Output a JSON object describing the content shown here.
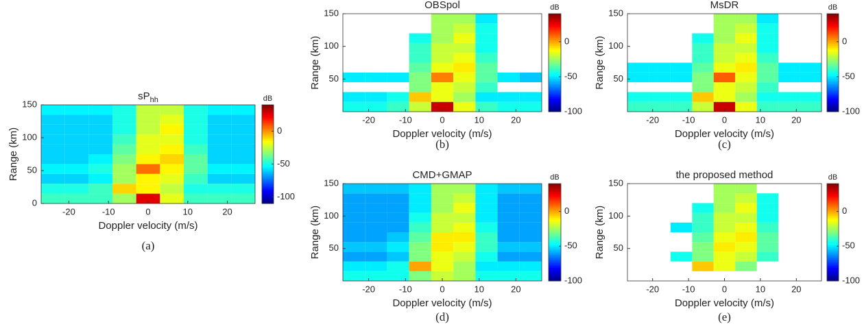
{
  "chart_data": [
    {
      "type": "heatmap",
      "title": "sP",
      "title_sub": "hh",
      "caption": "(a)",
      "xlabel": "Doppler velocity (m/s)",
      "ylabel": "Range (km)",
      "colorbar_label": "dB",
      "x": [
        -24,
        -18,
        -12,
        -6,
        0,
        6,
        12,
        18,
        24
      ],
      "y": [
        7.5,
        22.5,
        37.5,
        52.5,
        67.5,
        82.5,
        97.5,
        112.5,
        127.5,
        142.5
      ],
      "xlim": [
        -27,
        27
      ],
      "ylim": [
        0,
        150
      ],
      "xticks": [
        -20,
        -10,
        0,
        10,
        20
      ],
      "yticks": [
        0,
        50,
        100,
        150
      ],
      "clim": [
        -110,
        40
      ],
      "cticks": [
        0,
        -50,
        -100
      ],
      "z": [
        [
          -45,
          -45,
          -45,
          -30,
          25,
          -20,
          -45,
          -45,
          -45
        ],
        [
          -50,
          -50,
          -45,
          -10,
          -15,
          -25,
          -50,
          -50,
          -50
        ],
        [
          -60,
          -60,
          -55,
          -30,
          -15,
          -20,
          -45,
          -60,
          -60
        ],
        [
          -55,
          -55,
          -50,
          -30,
          5,
          -15,
          -40,
          -55,
          -55
        ],
        [
          -60,
          -60,
          -55,
          -35,
          -15,
          -10,
          -40,
          -60,
          -60
        ],
        [
          -60,
          -60,
          -60,
          -40,
          -20,
          -15,
          -45,
          -60,
          -60
        ],
        [
          -60,
          -60,
          -60,
          -45,
          -20,
          -20,
          -50,
          -60,
          -60
        ],
        [
          -60,
          -60,
          -60,
          -50,
          -25,
          -15,
          -50,
          -60,
          -60
        ],
        [
          -60,
          -60,
          -60,
          -50,
          -25,
          -20,
          -50,
          -60,
          -60
        ],
        [
          -55,
          -55,
          -55,
          -50,
          -25,
          -25,
          -50,
          -55,
          -55
        ]
      ]
    },
    {
      "type": "heatmap",
      "title": "OBSpol",
      "caption": "(b)",
      "xlabel": "Doppler velocity (m/s)",
      "ylabel": "Range (km)",
      "colorbar_label": "dB",
      "x": [
        -24,
        -18,
        -12,
        -6,
        0,
        6,
        12,
        18,
        24
      ],
      "y": [
        7.5,
        22.5,
        37.5,
        52.5,
        67.5,
        82.5,
        97.5,
        112.5,
        127.5,
        142.5
      ],
      "xlim": [
        -27,
        27
      ],
      "ylim": [
        0,
        150
      ],
      "xticks": [
        -20,
        -10,
        0,
        10,
        20
      ],
      "yticks": [
        50,
        100,
        150
      ],
      "clim": [
        -100,
        40
      ],
      "cticks": [
        0,
        -50,
        -100
      ],
      "z": [
        [
          -45,
          -45,
          -40,
          -20,
          30,
          -15,
          -40,
          -45,
          -45
        ],
        [
          -50,
          -50,
          -45,
          -5,
          -15,
          -25,
          -50,
          -50,
          -50
        ],
        [
          null,
          null,
          null,
          -30,
          -15,
          -20,
          -40,
          null,
          null
        ],
        [
          -50,
          -50,
          -50,
          -30,
          5,
          -15,
          -35,
          -50,
          -55
        ],
        [
          null,
          null,
          null,
          -35,
          -15,
          -10,
          -35,
          null,
          null
        ],
        [
          null,
          null,
          null,
          -40,
          -20,
          -15,
          -40,
          null,
          null
        ],
        [
          null,
          null,
          null,
          -40,
          -20,
          -20,
          -45,
          null,
          null
        ],
        [
          null,
          null,
          null,
          -45,
          -25,
          -15,
          -45,
          null,
          null
        ],
        [
          null,
          null,
          null,
          null,
          -25,
          -20,
          -45,
          null,
          null
        ],
        [
          null,
          null,
          null,
          null,
          -25,
          -25,
          -50,
          null,
          null
        ]
      ]
    },
    {
      "type": "heatmap",
      "title": "MsDR",
      "caption": "(c)",
      "xlabel": "Doppler velocity (m/s)",
      "ylabel": "Range (km)",
      "colorbar_label": "dB",
      "x": [
        -24,
        -18,
        -12,
        -6,
        0,
        6,
        12,
        18,
        24
      ],
      "y": [
        7.5,
        22.5,
        37.5,
        52.5,
        67.5,
        82.5,
        97.5,
        112.5,
        127.5,
        142.5
      ],
      "xlim": [
        -27,
        27
      ],
      "ylim": [
        0,
        150
      ],
      "xticks": [
        -20,
        -10,
        0,
        10,
        20
      ],
      "yticks": [
        50,
        100,
        150
      ],
      "clim": [
        -100,
        40
      ],
      "cticks": [
        0,
        -50,
        -100
      ],
      "z": [
        [
          -40,
          -40,
          -40,
          -20,
          30,
          -15,
          -40,
          -40,
          -40
        ],
        [
          -45,
          -45,
          -45,
          -5,
          -15,
          -25,
          -45,
          -45,
          -45
        ],
        [
          null,
          null,
          null,
          -30,
          -15,
          -20,
          -40,
          null,
          null
        ],
        [
          -50,
          -50,
          -50,
          -30,
          10,
          -15,
          -35,
          -50,
          -50
        ],
        [
          -50,
          -50,
          -50,
          -35,
          -15,
          -10,
          -35,
          -50,
          -50
        ],
        [
          null,
          null,
          null,
          -40,
          -20,
          -15,
          -40,
          null,
          null
        ],
        [
          null,
          null,
          null,
          -40,
          -20,
          -20,
          -45,
          null,
          null
        ],
        [
          null,
          null,
          null,
          -45,
          -25,
          -15,
          -45,
          null,
          null
        ],
        [
          null,
          null,
          null,
          null,
          -25,
          -20,
          -45,
          null,
          null
        ],
        [
          null,
          null,
          null,
          null,
          -25,
          -25,
          -50,
          null,
          null
        ]
      ]
    },
    {
      "type": "heatmap",
      "title": "CMD+GMAP",
      "caption": "(d)",
      "xlabel": "Doppler velocity (m/s)",
      "ylabel": "Range (km)",
      "colorbar_label": "dB",
      "x": [
        -24,
        -18,
        -12,
        -6,
        0,
        6,
        12,
        18,
        24
      ],
      "y": [
        7.5,
        22.5,
        37.5,
        52.5,
        67.5,
        82.5,
        97.5,
        112.5,
        127.5,
        142.5
      ],
      "xlim": [
        -27,
        27
      ],
      "ylim": [
        0,
        150
      ],
      "xticks": [
        -20,
        -10,
        0,
        10,
        20
      ],
      "yticks": [
        50,
        100,
        150
      ],
      "clim": [
        -100,
        40
      ],
      "cticks": [
        0,
        -50,
        -100
      ],
      "z": [
        [
          -45,
          -45,
          -45,
          -30,
          -20,
          -25,
          -45,
          -45,
          -45
        ],
        [
          -50,
          -50,
          -45,
          0,
          -15,
          -25,
          -50,
          -50,
          -50
        ],
        [
          -60,
          -60,
          -55,
          -30,
          -15,
          -20,
          -45,
          -60,
          -60
        ],
        [
          -55,
          -55,
          -50,
          -30,
          -10,
          -15,
          -40,
          -55,
          -55
        ],
        [
          -60,
          -60,
          -55,
          -35,
          -10,
          -10,
          -40,
          -60,
          -60
        ],
        [
          -60,
          -60,
          -60,
          -40,
          -20,
          -15,
          -45,
          -60,
          -60
        ],
        [
          -60,
          -60,
          -60,
          -45,
          -20,
          -20,
          -50,
          -60,
          -60
        ],
        [
          -60,
          -60,
          -60,
          -50,
          -25,
          -15,
          -50,
          -60,
          -60
        ],
        [
          -60,
          -60,
          -60,
          -50,
          -25,
          -20,
          -50,
          -60,
          -60
        ],
        [
          -55,
          -55,
          -55,
          -50,
          -25,
          -25,
          -50,
          -55,
          -55
        ]
      ]
    },
    {
      "type": "heatmap",
      "title": "the proposed method",
      "caption": "(e)",
      "xlabel": "Doppler velocity (m/s)",
      "ylabel": "Range (km)",
      "colorbar_label": "dB",
      "x": [
        -24,
        -18,
        -12,
        -6,
        0,
        6,
        12,
        18,
        24
      ],
      "y": [
        7.5,
        22.5,
        37.5,
        52.5,
        67.5,
        82.5,
        97.5,
        112.5,
        127.5,
        142.5
      ],
      "xlim": [
        -27,
        27
      ],
      "ylim": [
        0,
        150
      ],
      "xticks": [
        -20,
        -10,
        0,
        10,
        20
      ],
      "yticks": [
        50,
        100,
        150
      ],
      "clim": [
        -100,
        40
      ],
      "cticks": [
        0,
        -50,
        -100
      ],
      "z": [
        [
          null,
          null,
          null,
          null,
          null,
          null,
          null,
          null,
          null
        ],
        [
          null,
          null,
          null,
          -5,
          -15,
          -30,
          null,
          null,
          null
        ],
        [
          null,
          null,
          -45,
          -30,
          -15,
          -20,
          -40,
          null,
          null
        ],
        [
          null,
          null,
          null,
          -30,
          -10,
          -15,
          -35,
          null,
          null
        ],
        [
          null,
          null,
          null,
          -35,
          -15,
          -10,
          -35,
          null,
          null
        ],
        [
          null,
          null,
          -50,
          -40,
          -20,
          -15,
          -40,
          null,
          null
        ],
        [
          null,
          null,
          null,
          -40,
          -20,
          -20,
          -45,
          null,
          null
        ],
        [
          null,
          null,
          null,
          -45,
          -25,
          -15,
          -45,
          null,
          null
        ],
        [
          null,
          null,
          null,
          null,
          -25,
          -20,
          -45,
          null,
          null
        ],
        [
          null,
          null,
          null,
          null,
          -25,
          -25,
          null,
          null,
          null
        ]
      ]
    }
  ]
}
